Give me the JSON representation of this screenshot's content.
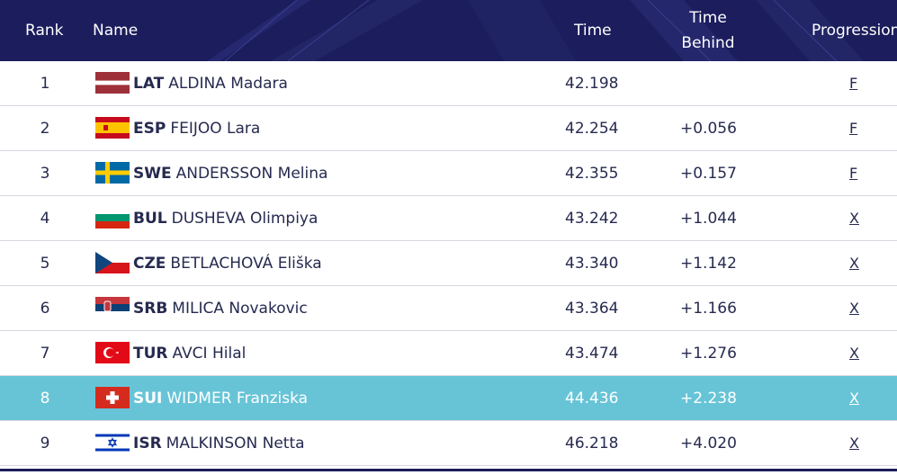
{
  "table": {
    "headers": {
      "rank": "Rank",
      "name": "Name",
      "time": "Time",
      "behind_line1": "Time",
      "behind_line2": "Behind",
      "progression": "Progression"
    },
    "rows": [
      {
        "rank": "1",
        "code": "LAT",
        "name": "ALDINA Madara",
        "time": "42.198",
        "behind": "",
        "progression": "F",
        "flag": "latvia-flag-icon",
        "highlight": false
      },
      {
        "rank": "2",
        "code": "ESP",
        "name": "FEIJOO Lara",
        "time": "42.254",
        "behind": "+0.056",
        "progression": "F",
        "flag": "spain-flag-icon",
        "highlight": false
      },
      {
        "rank": "3",
        "code": "SWE",
        "name": "ANDERSSON Melina",
        "time": "42.355",
        "behind": "+0.157",
        "progression": "F",
        "flag": "sweden-flag-icon",
        "highlight": false
      },
      {
        "rank": "4",
        "code": "BUL",
        "name": "DUSHEVA Olimpiya",
        "time": "43.242",
        "behind": "+1.044",
        "progression": "X",
        "flag": "bulgaria-flag-icon",
        "highlight": false
      },
      {
        "rank": "5",
        "code": "CZE",
        "name": "BETLACHOVÁ Eliška",
        "time": "43.340",
        "behind": "+1.142",
        "progression": "X",
        "flag": "czechia-flag-icon",
        "highlight": false
      },
      {
        "rank": "6",
        "code": "SRB",
        "name": "MILICA Novakovic",
        "time": "43.364",
        "behind": "+1.166",
        "progression": "X",
        "flag": "serbia-flag-icon",
        "highlight": false
      },
      {
        "rank": "7",
        "code": "TUR",
        "name": "AVCI Hilal",
        "time": "43.474",
        "behind": "+1.276",
        "progression": "X",
        "flag": "turkey-flag-icon",
        "highlight": false
      },
      {
        "rank": "8",
        "code": "SUI",
        "name": "WIDMER Franziska",
        "time": "44.436",
        "behind": "+2.238",
        "progression": "X",
        "flag": "switzerland-flag-icon",
        "highlight": true
      },
      {
        "rank": "9",
        "code": "ISR",
        "name": "MALKINSON Netta",
        "time": "46.218",
        "behind": "+4.020",
        "progression": "X",
        "flag": "israel-flag-icon",
        "highlight": false
      }
    ]
  },
  "colors": {
    "header_bg": "#1b1d5c",
    "highlight_bg": "#67c4d7",
    "text": "#262a4f"
  }
}
